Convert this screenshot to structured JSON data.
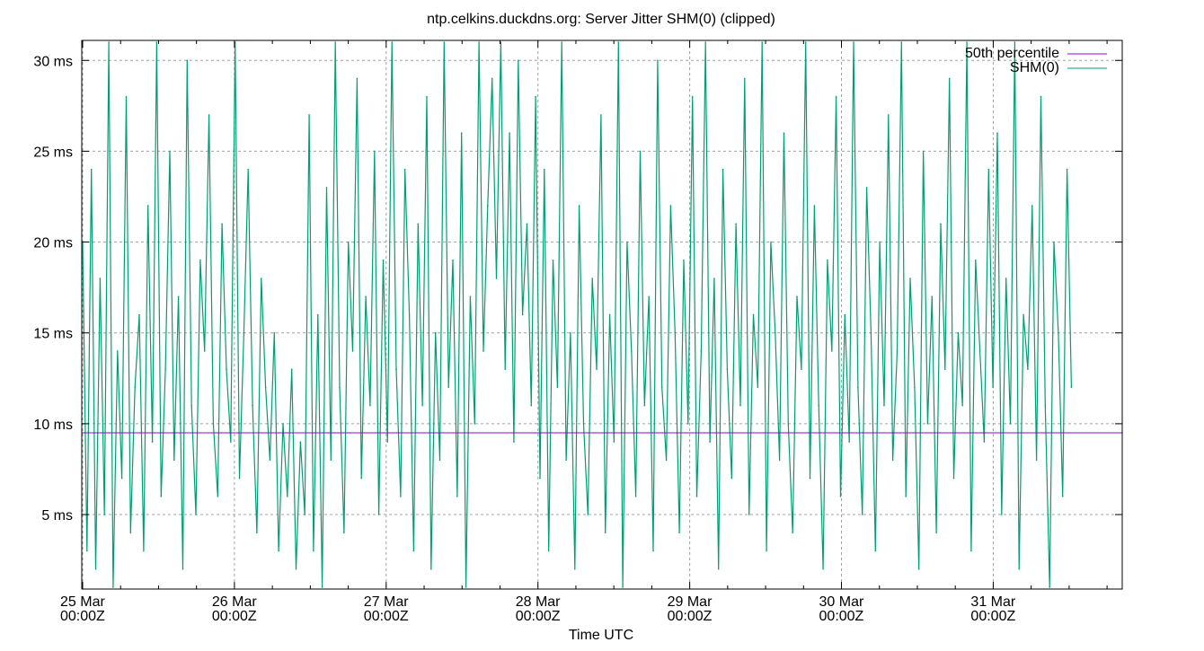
{
  "chart_data": {
    "type": "line",
    "title": "ntp.celkins.duckdns.org: Server Jitter SHM(0) (clipped)",
    "xlabel": "Time UTC",
    "ylabel": "",
    "xlim_days": [
      0,
      6.85
    ],
    "ylim": [
      0.9,
      31.1
    ],
    "grid": true,
    "legend_placement": "top-right",
    "x_ticks": [
      {
        "day": 0,
        "line1": "25 Mar",
        "line2": "00:00Z"
      },
      {
        "day": 1,
        "line1": "26 Mar",
        "line2": "00:00Z"
      },
      {
        "day": 2,
        "line1": "27 Mar",
        "line2": "00:00Z"
      },
      {
        "day": 3,
        "line1": "28 Mar",
        "line2": "00:00Z"
      },
      {
        "day": 4,
        "line1": "29 Mar",
        "line2": "00:00Z"
      },
      {
        "day": 5,
        "line1": "30 Mar",
        "line2": "00:00Z"
      },
      {
        "day": 6,
        "line1": "31 Mar",
        "line2": "00:00Z"
      }
    ],
    "y_ticks": [
      {
        "value": 5,
        "label": "5 ms"
      },
      {
        "value": 10,
        "label": "10 ms"
      },
      {
        "value": 15,
        "label": "15 ms"
      },
      {
        "value": 20,
        "label": "20 ms"
      },
      {
        "value": 25,
        "label": "25 ms"
      },
      {
        "value": 30,
        "label": "30 ms"
      }
    ],
    "series": [
      {
        "name": "50th percentile",
        "color": "#9400d3",
        "constant": 9.5
      },
      {
        "name": "SHM(0)",
        "color": "#009e73",
        "x_start_day": 0,
        "x_step_day": 0.0287,
        "values": [
          20,
          3,
          24,
          2,
          18,
          5,
          31,
          1,
          14,
          7,
          28,
          4,
          12,
          16,
          3,
          22,
          9,
          31,
          6,
          13,
          25,
          8,
          17,
          2,
          30,
          11,
          5,
          19,
          14,
          27,
          10,
          6,
          21,
          13,
          9,
          31,
          7,
          15,
          24,
          11,
          4,
          18,
          12,
          8,
          15,
          3,
          10,
          6,
          13,
          2,
          9,
          5,
          27,
          3,
          16,
          1,
          23,
          8,
          31,
          12,
          4,
          20,
          14,
          29,
          7,
          17,
          11,
          25,
          5,
          19,
          9,
          31,
          13,
          6,
          24,
          16,
          3,
          21,
          11,
          28,
          2,
          15,
          8,
          31,
          12,
          19,
          6,
          26,
          1,
          17,
          10,
          31,
          14,
          22,
          29,
          18,
          31,
          13,
          26,
          9,
          30,
          16,
          21,
          11,
          28,
          7,
          24,
          3,
          19,
          12,
          31,
          8,
          15,
          2,
          22,
          10,
          5,
          18,
          13,
          27,
          4,
          16,
          9,
          31,
          1,
          20,
          14,
          6,
          25,
          11,
          17,
          3,
          30,
          12,
          8,
          22,
          15,
          4,
          19,
          10,
          28,
          6,
          14,
          31,
          9,
          18,
          2,
          24,
          13,
          7,
          21,
          11,
          29,
          5,
          16,
          12,
          31,
          3,
          20,
          15,
          8,
          26,
          10,
          4,
          17,
          13,
          31,
          7,
          22,
          11,
          2,
          19,
          14,
          28,
          6,
          16,
          9,
          31,
          12,
          5,
          23,
          15,
          3,
          20,
          11,
          27,
          8,
          14,
          31,
          6,
          18,
          12,
          2,
          25,
          10,
          17,
          4,
          21,
          13,
          29,
          7,
          15,
          11,
          31,
          3,
          19,
          14,
          9,
          24,
          12,
          26,
          5,
          18,
          10,
          31,
          2,
          16,
          13,
          22,
          8,
          28,
          11,
          1,
          20,
          15,
          6,
          24,
          12
        ]
      }
    ]
  }
}
